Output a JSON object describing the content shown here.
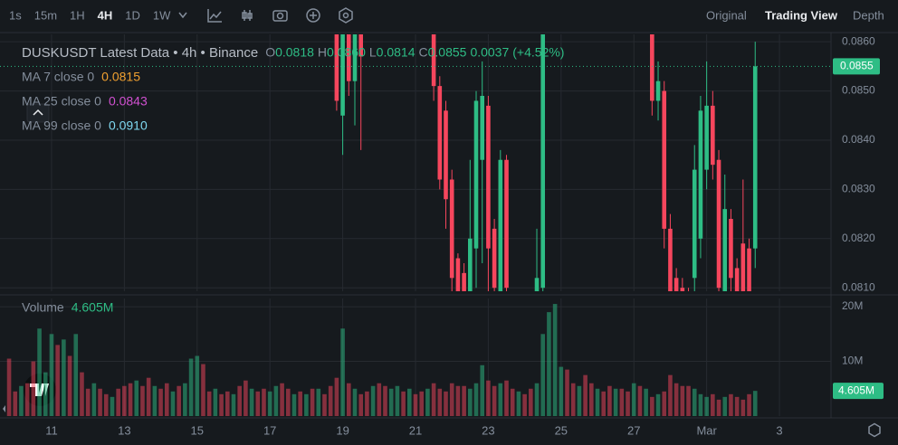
{
  "toolbar": {
    "intervals": [
      "1s",
      "15m",
      "1H",
      "4H",
      "1D",
      "1W"
    ],
    "active": "4H",
    "views": [
      "Original",
      "Trading View",
      "Depth"
    ],
    "active_view": "Trading View"
  },
  "chart_data": {
    "type": "candlestick",
    "title": "DUSKUSDT Latest Data • 4h • Binance",
    "legend": [
      {
        "label": "O",
        "value": "0.0818"
      },
      {
        "label": "H",
        "value": "0.0860"
      },
      {
        "label": "L",
        "value": "0.0814"
      },
      {
        "label": "C",
        "value": "0.0855"
      },
      {
        "value": "0.0037"
      },
      {
        "value": "(+4.52%)"
      }
    ],
    "ma": [
      {
        "name": "MA 7 close 0",
        "value": "0.0815",
        "color": "#f0a030"
      },
      {
        "name": "MA 25 close 0",
        "value": "0.0843",
        "color": "#d050d0"
      },
      {
        "name": "MA 99 close 0",
        "value": "0.0910",
        "color": "#7fd8f0"
      }
    ],
    "up_color": "#2ebd85",
    "down_color": "#f6465d",
    "x": [
      0,
      4,
      8,
      12,
      16,
      20,
      24,
      28,
      32,
      36,
      40,
      44,
      48,
      52,
      56,
      60,
      64,
      68,
      72,
      76,
      80,
      84,
      88,
      92,
      96,
      100,
      104,
      108,
      112,
      116,
      120,
      124,
      128,
      132,
      136,
      140,
      144,
      148,
      152,
      156,
      160,
      164,
      168,
      172,
      176,
      180,
      184,
      188,
      192,
      196,
      200,
      204,
      208,
      212,
      216,
      220,
      224,
      228,
      232,
      236,
      240,
      244,
      248,
      252,
      256,
      260,
      264,
      268,
      272,
      276,
      280,
      284,
      288,
      292,
      296,
      300,
      304,
      308,
      312,
      316,
      320,
      324,
      328,
      332,
      336,
      340,
      344,
      348,
      352,
      356,
      360,
      364,
      368,
      372,
      376,
      380,
      384,
      388,
      392,
      396,
      400,
      404,
      408,
      412,
      416,
      420,
      424,
      428,
      432,
      436,
      440,
      444,
      448,
      452,
      456,
      460,
      464,
      468,
      472,
      476,
      480,
      484,
      488,
      492
    ],
    "xlim": [
      -6,
      542
    ],
    "xticks": [
      {
        "value": 28,
        "label": "11"
      },
      {
        "value": 76,
        "label": "13"
      },
      {
        "value": 124,
        "label": "15"
      },
      {
        "value": 172,
        "label": "17"
      },
      {
        "value": 220,
        "label": "19"
      },
      {
        "value": 268,
        "label": "21"
      },
      {
        "value": 316,
        "label": "23"
      },
      {
        "value": 364,
        "label": "25"
      },
      {
        "value": 412,
        "label": "27"
      },
      {
        "value": 460,
        "label": "Mar"
      },
      {
        "value": 508,
        "label": "3"
      }
    ],
    "open": [
      null,
      null,
      null,
      null,
      null,
      null,
      null,
      null,
      null,
      null,
      null,
      null,
      null,
      null,
      null,
      null,
      null,
      null,
      null,
      null,
      null,
      null,
      null,
      null,
      null,
      null,
      null,
      null,
      null,
      null,
      null,
      null,
      null,
      null,
      null,
      null,
      null,
      null,
      null,
      null,
      null,
      null,
      null,
      null,
      null,
      null,
      null,
      null,
      null,
      null,
      null,
      null,
      null,
      null,
      0.087,
      0.0845,
      0.0866,
      0.0852,
      0.0866,
      null,
      null,
      null,
      null,
      null,
      null,
      null,
      null,
      null,
      null,
      null,
      0.0865,
      0.0851,
      0.0846,
      0.0832,
      0.0816,
      0.0813,
      0.0808,
      0.0818,
      0.0836,
      0.0847,
      0.0822,
      0.0808,
      0.0836,
      null,
      null,
      null,
      null,
      0.0805,
      0.081,
      null,
      null,
      null,
      null,
      null,
      null,
      null,
      null,
      null,
      null,
      null,
      null,
      null,
      null,
      null,
      null,
      null,
      0.0868,
      0.0848,
      0.085,
      0.0822,
      0.0812,
      0.081,
      0.0808,
      0.0812,
      0.082,
      0.0834,
      0.0847,
      0.0836,
      0.0806,
      0.0824,
      0.0814,
      0.0819,
      0.0818,
      0.0818
    ],
    "high": [
      null,
      null,
      null,
      null,
      null,
      null,
      null,
      null,
      null,
      null,
      null,
      null,
      null,
      null,
      null,
      null,
      null,
      null,
      null,
      null,
      null,
      null,
      null,
      null,
      null,
      null,
      null,
      null,
      null,
      null,
      null,
      null,
      null,
      null,
      null,
      null,
      null,
      null,
      null,
      null,
      null,
      null,
      null,
      null,
      null,
      null,
      null,
      null,
      null,
      null,
      null,
      null,
      null,
      null,
      0.0872,
      0.087,
      0.0868,
      0.0868,
      0.0868,
      null,
      null,
      null,
      null,
      null,
      null,
      null,
      null,
      null,
      null,
      null,
      0.087,
      0.0853,
      0.0848,
      0.0834,
      0.0817,
      0.0815,
      0.0836,
      0.085,
      0.0856,
      0.0849,
      0.0824,
      0.0838,
      0.0837,
      null,
      null,
      null,
      null,
      0.0822,
      0.087,
      null,
      null,
      null,
      null,
      null,
      null,
      null,
      null,
      null,
      null,
      null,
      null,
      null,
      null,
      null,
      null,
      null,
      0.087,
      0.0856,
      0.0852,
      0.0825,
      0.0814,
      0.0812,
      0.081,
      0.0839,
      0.0849,
      0.0856,
      0.085,
      0.0838,
      0.0833,
      0.0826,
      0.0816,
      0.0832,
      0.082,
      0.086
    ],
    "low": [
      null,
      null,
      null,
      null,
      null,
      null,
      null,
      null,
      null,
      null,
      null,
      null,
      null,
      null,
      null,
      null,
      null,
      null,
      null,
      null,
      null,
      null,
      null,
      null,
      null,
      null,
      null,
      null,
      null,
      null,
      null,
      null,
      null,
      null,
      null,
      null,
      null,
      null,
      null,
      null,
      null,
      null,
      null,
      null,
      null,
      null,
      null,
      null,
      null,
      null,
      null,
      null,
      null,
      null,
      0.0846,
      0.0837,
      0.0849,
      0.0843,
      0.0838,
      null,
      null,
      null,
      null,
      null,
      null,
      null,
      null,
      null,
      null,
      null,
      0.0848,
      0.083,
      0.0822,
      0.0805,
      0.08,
      0.0798,
      0.0806,
      0.081,
      0.0815,
      0.0805,
      0.0806,
      0.0805,
      0.0806,
      null,
      null,
      null,
      null,
      0.08,
      0.0805,
      null,
      null,
      null,
      null,
      null,
      null,
      null,
      null,
      null,
      null,
      null,
      null,
      null,
      null,
      null,
      null,
      null,
      0.0845,
      0.0844,
      0.0818,
      0.08,
      0.08,
      0.0802,
      0.08,
      0.0808,
      0.0816,
      0.083,
      0.0832,
      0.0806,
      0.0803,
      0.0808,
      0.0803,
      0.0805,
      0.0803,
      0.0814
    ],
    "close": [
      null,
      null,
      null,
      null,
      null,
      null,
      null,
      null,
      null,
      null,
      null,
      null,
      null,
      null,
      null,
      null,
      null,
      null,
      null,
      null,
      null,
      null,
      null,
      null,
      null,
      null,
      null,
      null,
      null,
      null,
      null,
      null,
      null,
      null,
      null,
      null,
      null,
      null,
      null,
      null,
      null,
      null,
      null,
      null,
      null,
      null,
      null,
      null,
      null,
      null,
      null,
      null,
      null,
      null,
      0.0848,
      0.0868,
      0.0852,
      0.0866,
      0.0857,
      null,
      null,
      null,
      null,
      null,
      null,
      null,
      null,
      null,
      null,
      null,
      0.0851,
      0.0832,
      0.0828,
      0.0812,
      0.0805,
      0.08,
      0.082,
      0.0848,
      0.0849,
      0.0818,
      0.081,
      0.0836,
      0.081,
      null,
      null,
      null,
      null,
      0.0812,
      0.0868,
      null,
      null,
      null,
      null,
      null,
      null,
      null,
      null,
      null,
      null,
      null,
      null,
      null,
      null,
      null,
      null,
      null,
      0.0848,
      0.0852,
      0.0822,
      0.0808,
      0.0804,
      0.0805,
      0.0802,
      0.0834,
      0.0846,
      0.0847,
      0.0835,
      0.081,
      0.0826,
      0.0812,
      0.0806,
      0.0808,
      0.0805,
      0.0855
    ],
    "up": [
      0,
      0,
      1,
      0,
      0,
      1,
      1,
      1,
      0,
      1,
      0,
      1,
      0,
      0,
      1,
      0,
      0,
      1,
      0,
      0,
      0,
      1,
      0,
      0,
      1,
      0,
      0,
      1,
      0,
      1,
      1,
      1,
      0,
      0,
      1,
      0,
      0,
      1,
      0,
      0,
      1,
      0,
      0,
      1,
      1,
      0,
      0,
      1,
      0,
      1,
      0,
      1,
      0,
      0,
      0,
      1,
      0,
      1,
      0,
      0,
      1,
      0,
      0,
      1,
      1,
      0,
      1,
      0,
      0,
      1,
      0,
      0,
      0,
      0,
      0,
      0,
      1,
      1,
      1,
      0,
      0,
      1,
      0,
      0,
      1,
      0,
      0,
      1,
      1,
      1,
      1,
      1,
      0,
      0,
      1,
      0,
      0,
      1,
      0,
      0,
      1,
      0,
      0,
      1,
      0,
      1,
      0,
      1,
      0,
      0,
      0,
      0,
      0,
      1,
      1,
      1,
      0,
      0,
      1,
      0,
      0,
      0,
      0,
      1
    ],
    "ylim": [
      0.08093,
      0.08615
    ],
    "yticks": [
      {
        "value": 0.081,
        "label": "0.0810"
      },
      {
        "value": 0.082,
        "label": "0.0820"
      },
      {
        "value": 0.083,
        "label": "0.0830"
      },
      {
        "value": 0.084,
        "label": "0.0840"
      },
      {
        "value": 0.085,
        "label": "0.0850"
      },
      {
        "value": 0.086,
        "label": "0.0860"
      }
    ],
    "volume_title": "Volume",
    "volume_last_label": "4.605M",
    "volume": [
      10.5,
      4.5,
      5.5,
      6,
      10,
      16,
      8,
      15,
      13,
      14,
      11,
      15,
      8,
      5,
      6,
      5,
      4,
      3.5,
      5,
      5.5,
      6,
      6.5,
      5.5,
      7,
      5.5,
      5,
      6,
      4.5,
      5.5,
      6,
      10.5,
      11,
      9.5,
      4.5,
      5,
      4,
      4.5,
      4,
      5.5,
      6.5,
      5,
      4.5,
      5,
      4.5,
      5.5,
      6,
      5,
      4,
      4.5,
      4,
      5,
      5,
      4,
      5.5,
      7,
      16,
      6,
      5,
      4,
      4.5,
      5.5,
      6,
      5.5,
      5,
      5.5,
      4.5,
      5,
      4,
      4.5,
      5,
      6,
      5,
      4.5,
      6,
      5.5,
      5.5,
      5,
      6,
      9.3,
      6.5,
      5.5,
      6,
      6.5,
      5,
      4.5,
      4,
      5,
      6,
      15,
      19,
      20.5,
      9,
      8.5,
      6,
      5.5,
      7.5,
      6,
      5,
      4.5,
      5.5,
      5,
      5,
      4.5,
      6,
      5.5,
      5,
      3.5,
      4,
      4.5,
      7.5,
      6,
      5.5,
      5.5,
      5,
      4,
      3.5,
      4,
      3,
      3.5,
      4,
      3.5,
      3,
      4,
      4.605
    ],
    "vlim": [
      0,
      21.5
    ],
    "vticks": [
      {
        "value": 10,
        "label": "10M"
      },
      {
        "value": 20,
        "label": "20M"
      }
    ],
    "grid": true
  }
}
